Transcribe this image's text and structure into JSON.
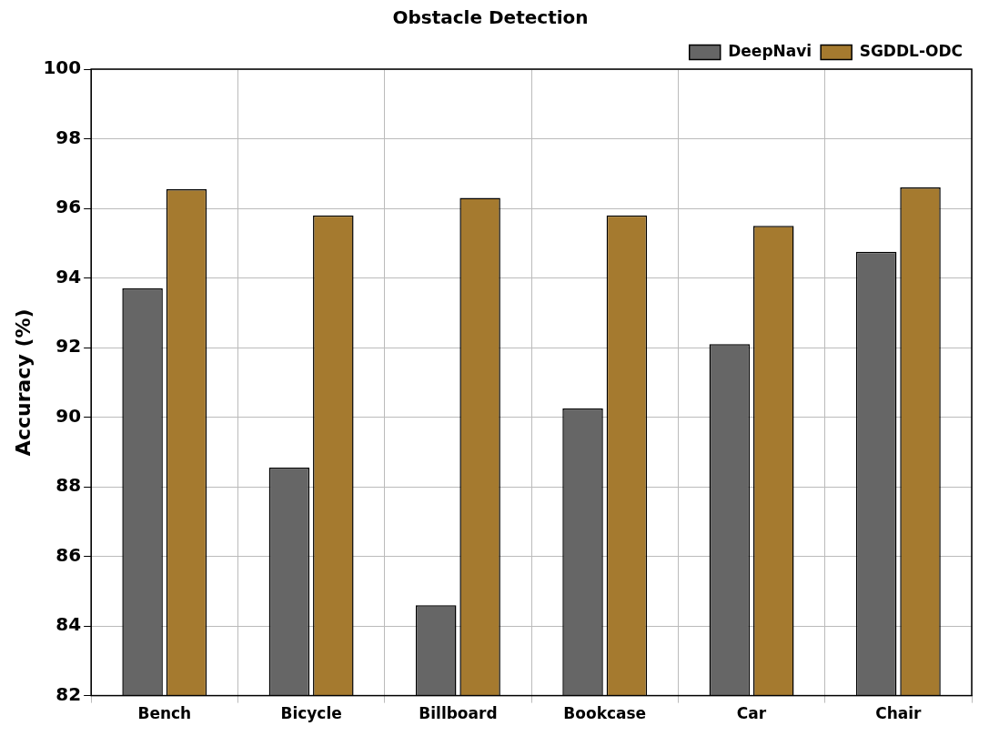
{
  "chart_data": {
    "type": "bar",
    "title": "Obstacle Detection",
    "y_label": "Accuracy (%)",
    "categories": [
      "Bench",
      "Bicycle",
      "Billboard",
      "Bookcase",
      "Car",
      "Chair"
    ],
    "series": [
      {
        "name": "DeepNavi",
        "color": "#666666",
        "values": [
          93.7,
          88.55,
          84.6,
          90.25,
          92.1,
          94.75
        ]
      },
      {
        "name": "SGDDL-ODC",
        "color": "#a57a2f",
        "values": [
          96.55,
          95.8,
          96.3,
          95.8,
          95.5,
          96.6
        ]
      }
    ],
    "ylim": [
      82,
      100
    ],
    "yticks": [
      82,
      84,
      86,
      88,
      90,
      92,
      94,
      96,
      98,
      100
    ],
    "grid": true,
    "legend": "upper right"
  }
}
